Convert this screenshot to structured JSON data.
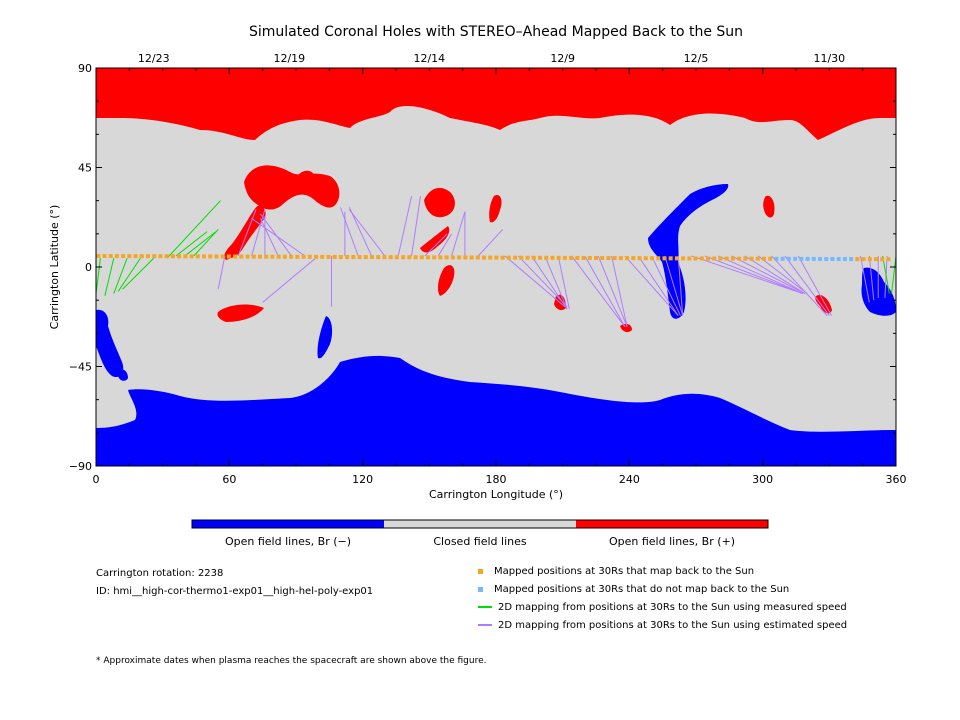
{
  "chart_data": {
    "type": "map",
    "title": "Simulated Coronal Holes with STEREO–Ahead Mapped Back to the Sun",
    "xlabel": "Carrington Longitude (°)",
    "ylabel": "Carrington Latitude (°)",
    "xlim": [
      0,
      360
    ],
    "ylim": [
      -90,
      90
    ],
    "x_ticks": [
      "0",
      "60",
      "120",
      "180",
      "240",
      "300",
      "360"
    ],
    "y_ticks": [
      "90",
      "45",
      "0",
      "−45",
      "−90"
    ],
    "top_date_ticks": [
      {
        "lon": 26,
        "label": "12/23"
      },
      {
        "lon": 87,
        "label": "12/19"
      },
      {
        "lon": 150,
        "label": "12/14"
      },
      {
        "lon": 210,
        "label": "12/9"
      },
      {
        "lon": 270,
        "label": "12/5"
      },
      {
        "lon": 330,
        "label": "11/30"
      }
    ],
    "colorbar": [
      {
        "label": "Open field lines, Br (−)",
        "color": "#0000ff"
      },
      {
        "label": "Closed field lines",
        "color": "#d8d8d8"
      },
      {
        "label": "Open field lines, Br (+)",
        "color": "#ff0000"
      }
    ],
    "mapped_points": {
      "latitude": 5,
      "back_to_sun_color": "#f5a623",
      "not_back_color": "#74b9ff",
      "not_back_lon_range": [
        305,
        342
      ]
    },
    "mapping_lines": [
      {
        "from": [
          2,
          4
        ],
        "to": [
          0,
          -12
        ],
        "kind": "measured"
      },
      {
        "from": [
          8,
          4
        ],
        "to": [
          4,
          -13
        ],
        "kind": "measured"
      },
      {
        "from": [
          14,
          4
        ],
        "to": [
          8,
          -12
        ],
        "kind": "measured"
      },
      {
        "from": [
          20,
          4
        ],
        "to": [
          10,
          -11
        ],
        "kind": "measured"
      },
      {
        "from": [
          26,
          4
        ],
        "to": [
          12,
          -10
        ],
        "kind": "measured"
      },
      {
        "from": [
          32,
          4
        ],
        "to": [
          56,
          30
        ],
        "kind": "measured"
      },
      {
        "from": [
          36,
          5
        ],
        "to": [
          50,
          16
        ],
        "kind": "measured"
      },
      {
        "from": [
          40,
          5
        ],
        "to": [
          54,
          16
        ],
        "kind": "measured"
      },
      {
        "from": [
          44,
          5
        ],
        "to": [
          55,
          17
        ],
        "kind": "measured"
      },
      {
        "from": [
          58,
          5
        ],
        "to": [
          55,
          -10
        ],
        "kind": "estimated"
      },
      {
        "from": [
          64,
          5
        ],
        "to": [
          72,
          26
        ],
        "kind": "estimated"
      },
      {
        "from": [
          70,
          5
        ],
        "to": [
          76,
          26
        ],
        "kind": "estimated"
      },
      {
        "from": [
          76,
          5
        ],
        "to": [
          76,
          23
        ],
        "kind": "estimated"
      },
      {
        "from": [
          82,
          5
        ],
        "to": [
          74,
          22
        ],
        "kind": "estimated"
      },
      {
        "from": [
          88,
          5
        ],
        "to": [
          74,
          24
        ],
        "kind": "estimated"
      },
      {
        "from": [
          94,
          5
        ],
        "to": [
          70,
          22
        ],
        "kind": "estimated"
      },
      {
        "from": [
          100,
          5
        ],
        "to": [
          75,
          -16
        ],
        "kind": "estimated"
      },
      {
        "from": [
          106,
          5
        ],
        "to": [
          106,
          -18
        ],
        "kind": "estimated"
      },
      {
        "from": [
          112,
          5
        ],
        "to": [
          112,
          25
        ],
        "kind": "estimated"
      },
      {
        "from": [
          118,
          5
        ],
        "to": [
          110,
          27
        ],
        "kind": "estimated"
      },
      {
        "from": [
          124,
          5
        ],
        "to": [
          114,
          27
        ],
        "kind": "estimated"
      },
      {
        "from": [
          130,
          5
        ],
        "to": [
          114,
          26
        ],
        "kind": "estimated"
      },
      {
        "from": [
          136,
          5
        ],
        "to": [
          142,
          32
        ],
        "kind": "estimated"
      },
      {
        "from": [
          142,
          5
        ],
        "to": [
          146,
          32
        ],
        "kind": "estimated"
      },
      {
        "from": [
          148,
          5
        ],
        "to": [
          158,
          15
        ],
        "kind": "estimated"
      },
      {
        "from": [
          154,
          5
        ],
        "to": [
          160,
          15
        ],
        "kind": "estimated"
      },
      {
        "from": [
          160,
          5
        ],
        "to": [
          166,
          25
        ],
        "kind": "estimated"
      },
      {
        "from": [
          166,
          5
        ],
        "to": [
          166,
          25
        ],
        "kind": "estimated"
      },
      {
        "from": [
          172,
          5
        ],
        "to": [
          183,
          17
        ],
        "kind": "estimated"
      },
      {
        "from": [
          178,
          5
        ],
        "to": [
          178,
          5
        ],
        "kind": "estimated"
      },
      {
        "from": [
          184,
          5
        ],
        "to": [
          211,
          -18
        ],
        "kind": "estimated"
      },
      {
        "from": [
          190,
          5
        ],
        "to": [
          212,
          -18
        ],
        "kind": "estimated"
      },
      {
        "from": [
          196,
          5
        ],
        "to": [
          212,
          -19
        ],
        "kind": "estimated"
      },
      {
        "from": [
          202,
          5
        ],
        "to": [
          212,
          -19
        ],
        "kind": "estimated"
      },
      {
        "from": [
          208,
          5
        ],
        "to": [
          213,
          -19
        ],
        "kind": "estimated"
      },
      {
        "from": [
          214,
          5
        ],
        "to": [
          238,
          -27
        ],
        "kind": "estimated"
      },
      {
        "from": [
          220,
          5
        ],
        "to": [
          238,
          -27
        ],
        "kind": "estimated"
      },
      {
        "from": [
          226,
          5
        ],
        "to": [
          239,
          -27
        ],
        "kind": "estimated"
      },
      {
        "from": [
          232,
          5
        ],
        "to": [
          239,
          -27
        ],
        "kind": "estimated"
      },
      {
        "from": [
          238,
          5
        ],
        "to": [
          262,
          -22
        ],
        "kind": "estimated"
      },
      {
        "from": [
          244,
          5
        ],
        "to": [
          262,
          -22
        ],
        "kind": "estimated"
      },
      {
        "from": [
          250,
          5
        ],
        "to": [
          263,
          -22
        ],
        "kind": "estimated"
      },
      {
        "from": [
          256,
          5
        ],
        "to": [
          264,
          -22
        ],
        "kind": "estimated"
      },
      {
        "from": [
          262,
          5
        ],
        "to": [
          264,
          -22
        ],
        "kind": "estimated"
      },
      {
        "from": [
          268,
          5
        ],
        "to": [
          318,
          -12
        ],
        "kind": "estimated"
      },
      {
        "from": [
          274,
          5
        ],
        "to": [
          318,
          -12
        ],
        "kind": "estimated"
      },
      {
        "from": [
          280,
          5
        ],
        "to": [
          318,
          -12
        ],
        "kind": "estimated"
      },
      {
        "from": [
          286,
          5
        ],
        "to": [
          319,
          -12
        ],
        "kind": "estimated"
      },
      {
        "from": [
          292,
          5
        ],
        "to": [
          319,
          -12
        ],
        "kind": "estimated"
      },
      {
        "from": [
          298,
          5
        ],
        "to": [
          320,
          -12
        ],
        "kind": "estimated"
      },
      {
        "from": [
          304,
          5
        ],
        "to": [
          329,
          -22
        ],
        "kind": "estimated"
      },
      {
        "from": [
          310,
          5
        ],
        "to": [
          330,
          -22
        ],
        "kind": "estimated"
      },
      {
        "from": [
          316,
          5
        ],
        "to": [
          331,
          -22
        ],
        "kind": "estimated"
      },
      {
        "from": [
          344,
          5
        ],
        "to": [
          348,
          -16
        ],
        "kind": "estimated"
      },
      {
        "from": [
          348,
          5
        ],
        "to": [
          350,
          -15
        ],
        "kind": "estimated"
      },
      {
        "from": [
          352,
          5
        ],
        "to": [
          352,
          -14
        ],
        "kind": "estimated"
      },
      {
        "from": [
          356,
          5
        ],
        "to": [
          355,
          -14
        ],
        "kind": "estimated"
      },
      {
        "from": [
          360,
          5
        ],
        "to": [
          358,
          -12
        ],
        "kind": "measured"
      },
      {
        "from": [
          354,
          5
        ],
        "to": [
          357,
          -12
        ],
        "kind": "measured"
      }
    ],
    "legend": [
      {
        "kind": "dot",
        "color": "#f5a623",
        "label": "Mapped positions at 30Rs that map back to the Sun"
      },
      {
        "kind": "dot",
        "color": "#74b9ff",
        "label": "Mapped positions at 30Rs that do not map back to the Sun"
      },
      {
        "kind": "line",
        "color": "#00dd00",
        "label": "2D mapping from positions at 30Rs to the Sun using measured speed"
      },
      {
        "kind": "line",
        "color": "#b07cff",
        "label": "2D mapping from positions at 30Rs to the Sun using estimated speed"
      }
    ]
  },
  "info": {
    "rotation": "Carrington rotation: 2238",
    "model_id": "ID: hmi__high-cor-thermo1-exp01__high-hel-poly-exp01",
    "footnote": "* Approximate dates when plasma reaches the spacecraft are shown above the figure."
  }
}
